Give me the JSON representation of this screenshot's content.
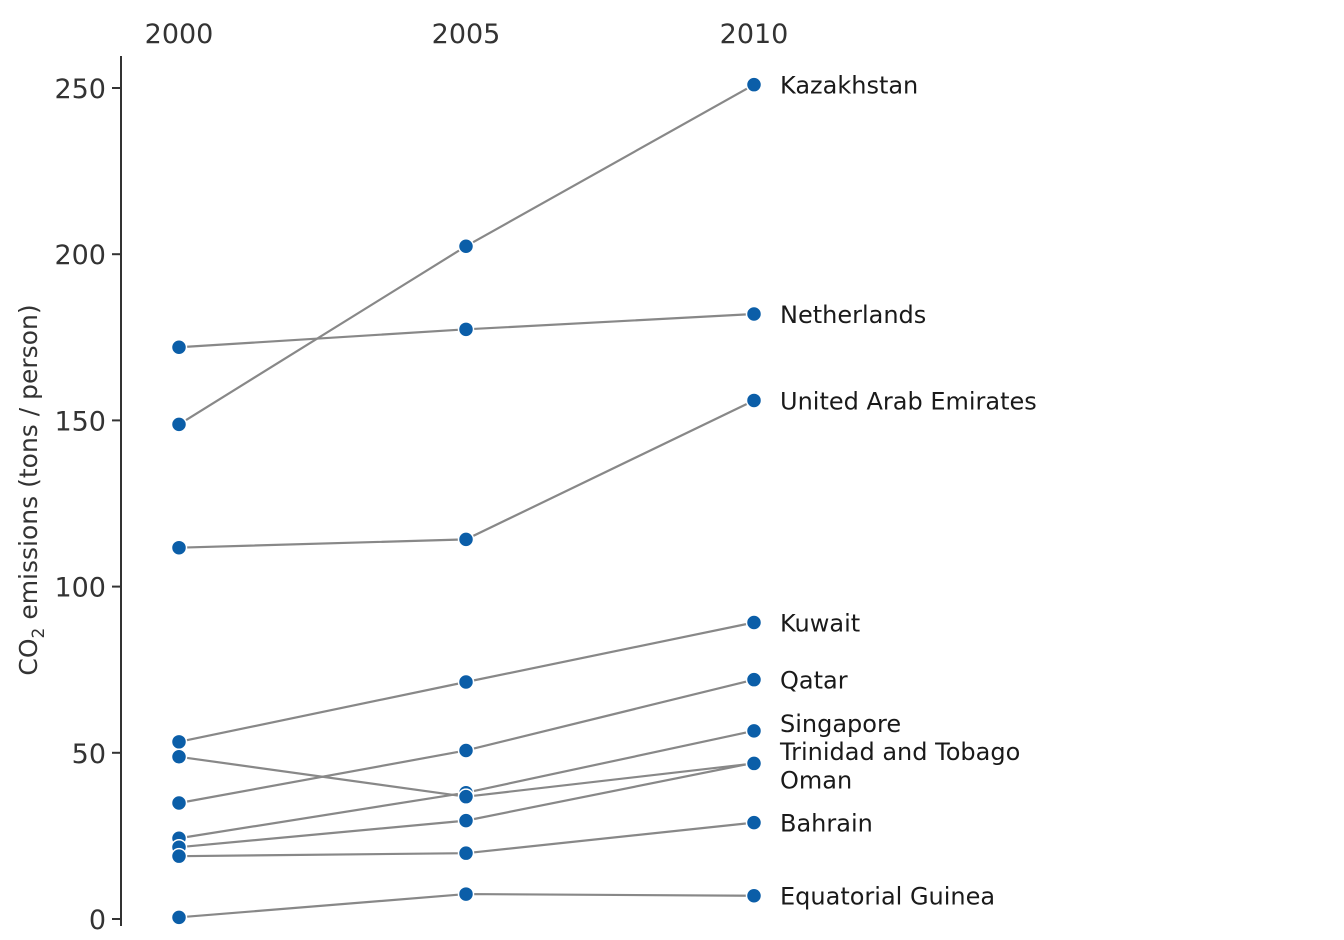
{
  "chart_data": {
    "type": "line",
    "title": "",
    "x": [
      "2000",
      "2005",
      "2010"
    ],
    "ylabel_main": "CO",
    "ylabel_sub": "2",
    "ylabel_rest": " emissions (tons / person)",
    "ylim": [
      0,
      260
    ],
    "yticks": [
      0,
      50,
      100,
      150,
      200,
      250
    ],
    "grid": false,
    "colors": {
      "line": "#888888",
      "point": "#0b5ea8",
      "axis": "#333333"
    },
    "series": [
      {
        "name": "Kazakhstan",
        "values": [
          148.8,
          202.4,
          251
        ]
      },
      {
        "name": "Netherlands",
        "values": [
          172,
          177.4,
          182
        ]
      },
      {
        "name": "United Arab Emirates",
        "values": [
          111.7,
          114.2,
          156
        ]
      },
      {
        "name": "Kuwait",
        "values": [
          53.3,
          71.3,
          89.2
        ]
      },
      {
        "name": "Qatar",
        "values": [
          34.9,
          50.7,
          72
        ]
      },
      {
        "name": "Singapore",
        "values": [
          24.3,
          38,
          56.6
        ]
      },
      {
        "name": "Trinidad and Tobago",
        "values": [
          21.6,
          29.6,
          47
        ]
      },
      {
        "name": "Oman",
        "values": [
          48.8,
          36.8,
          46.8
        ]
      },
      {
        "name": "Bahrain",
        "values": [
          18.9,
          19.8,
          29
        ]
      },
      {
        "name": "Equatorial Guinea",
        "values": [
          0.5,
          7.5,
          7
        ]
      }
    ],
    "label_offsets_y": [
      0,
      0,
      0,
      0,
      0,
      -8,
      -12,
      16,
      0,
      0
    ]
  }
}
